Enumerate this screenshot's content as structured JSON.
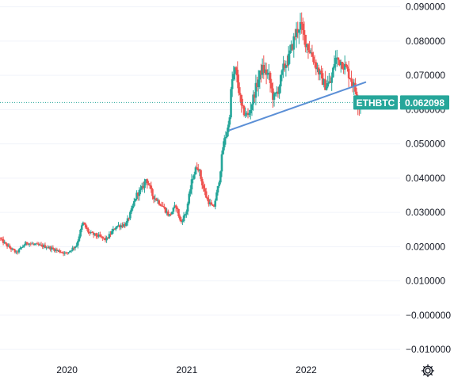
{
  "chart_data": {
    "type": "candlestick",
    "symbol": "ETHBTC",
    "last_price": "0.062098",
    "ylim": [
      -0.0125,
      0.092
    ],
    "y_ticks": [
      "0.090000",
      "0.080000",
      "0.070000",
      "0.060000",
      "0.050000",
      "0.040000",
      "0.030000",
      "0.020000",
      "0.010000",
      "−0.000000",
      "−0.010000"
    ],
    "y_tick_values": [
      0.09,
      0.08,
      0.07,
      0.06,
      0.05,
      0.04,
      0.03,
      0.02,
      0.01,
      0.0,
      -0.01
    ],
    "x_ticks": [
      "2020",
      "2021",
      "2022"
    ],
    "x_tick_dates": [
      "2020-01-01",
      "2021-01-01",
      "2022-01-01"
    ],
    "x_range": [
      "2019-06-10",
      "2022-10-15"
    ],
    "grid": "horizontal",
    "up_color": "#26a69a",
    "down_color": "#ef5350",
    "trendline": {
      "color": "#5b8fd6",
      "start": [
        "2021-05-12",
        0.054
      ],
      "end": [
        "2022-07-01",
        0.068
      ]
    },
    "price_line_color": "#26a69a",
    "series": [
      {
        "name": "ETHBTC",
        "anchors": [
          [
            "2019-06-10",
            0.0225
          ],
          [
            "2019-07-01",
            0.0205
          ],
          [
            "2019-08-01",
            0.0182
          ],
          [
            "2019-09-01",
            0.0212
          ],
          [
            "2019-10-01",
            0.0205
          ],
          [
            "2019-11-01",
            0.02
          ],
          [
            "2019-12-01",
            0.019
          ],
          [
            "2020-01-01",
            0.018
          ],
          [
            "2020-02-01",
            0.0205
          ],
          [
            "2020-02-20",
            0.027
          ],
          [
            "2020-03-10",
            0.024
          ],
          [
            "2020-04-10",
            0.023
          ],
          [
            "2020-05-01",
            0.022
          ],
          [
            "2020-06-01",
            0.026
          ],
          [
            "2020-07-01",
            0.0265
          ],
          [
            "2020-07-20",
            0.031
          ],
          [
            "2020-08-01",
            0.035
          ],
          [
            "2020-08-20",
            0.037
          ],
          [
            "2020-09-01",
            0.04
          ],
          [
            "2020-09-20",
            0.035
          ],
          [
            "2020-10-20",
            0.032
          ],
          [
            "2020-11-10",
            0.029
          ],
          [
            "2020-12-01",
            0.032
          ],
          [
            "2020-12-15",
            0.027
          ],
          [
            "2021-01-01",
            0.03
          ],
          [
            "2021-01-20",
            0.04
          ],
          [
            "2021-02-05",
            0.044
          ],
          [
            "2021-02-20",
            0.038
          ],
          [
            "2021-03-05",
            0.034
          ],
          [
            "2021-03-25",
            0.031
          ],
          [
            "2021-04-10",
            0.038
          ],
          [
            "2021-04-25",
            0.05
          ],
          [
            "2021-05-12",
            0.056
          ],
          [
            "2021-05-20",
            0.068
          ],
          [
            "2021-06-01",
            0.072
          ],
          [
            "2021-06-20",
            0.06
          ],
          [
            "2021-07-10",
            0.058
          ],
          [
            "2021-08-01",
            0.066
          ],
          [
            "2021-08-20",
            0.072
          ],
          [
            "2021-09-10",
            0.07
          ],
          [
            "2021-09-25",
            0.063
          ],
          [
            "2021-10-10",
            0.066
          ],
          [
            "2021-10-25",
            0.072
          ],
          [
            "2021-11-10",
            0.075
          ],
          [
            "2021-12-01",
            0.082
          ],
          [
            "2021-12-15",
            0.085
          ],
          [
            "2022-01-01",
            0.08
          ],
          [
            "2022-01-20",
            0.076
          ],
          [
            "2022-02-10",
            0.071
          ],
          [
            "2022-03-01",
            0.067
          ],
          [
            "2022-03-20",
            0.068
          ],
          [
            "2022-04-01",
            0.075
          ],
          [
            "2022-04-20",
            0.074
          ],
          [
            "2022-05-05",
            0.072
          ],
          [
            "2022-05-20",
            0.069
          ],
          [
            "2022-06-01",
            0.066
          ],
          [
            "2022-06-12",
            0.061
          ],
          [
            "2022-06-19",
            0.0621
          ]
        ]
      }
    ]
  },
  "ui": {
    "settings_icon": "gear-icon"
  }
}
